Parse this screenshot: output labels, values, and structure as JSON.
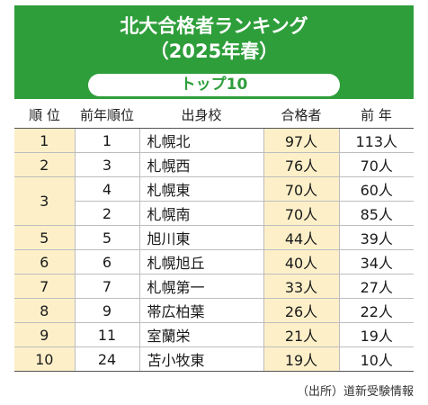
{
  "header": {
    "title_line1": "北大合格者ランキング",
    "title_line2": "（2025年春）",
    "subtitle": "トップ10",
    "colors": {
      "banner": "#2e9e3a",
      "highlight": "#fdf0c9"
    }
  },
  "table": {
    "columns": [
      "順 位",
      "前年順位",
      "出身校",
      "合格者",
      "前 年"
    ],
    "rows": [
      {
        "rank": "1",
        "prev": "1",
        "school": "札幌北",
        "count": "97人",
        "last": "113人"
      },
      {
        "rank": "2",
        "prev": "3",
        "school": "札幌西",
        "count": "76人",
        "last": "70人"
      },
      {
        "rank": "3",
        "prev": "4",
        "school": "札幌東",
        "count": "70人",
        "last": "60人"
      },
      {
        "rank": "",
        "prev": "2",
        "school": "札幌南",
        "count": "70人",
        "last": "85人"
      },
      {
        "rank": "5",
        "prev": "5",
        "school": "旭川東",
        "count": "44人",
        "last": "39人"
      },
      {
        "rank": "6",
        "prev": "6",
        "school": "札幌旭丘",
        "count": "40人",
        "last": "34人"
      },
      {
        "rank": "7",
        "prev": "7",
        "school": "札幌第一",
        "count": "33人",
        "last": "27人"
      },
      {
        "rank": "8",
        "prev": "9",
        "school": "帯広柏葉",
        "count": "26人",
        "last": "22人"
      },
      {
        "rank": "9",
        "prev": "11",
        "school": "室蘭栄",
        "count": "21人",
        "last": "19人"
      },
      {
        "rank": "10",
        "prev": "24",
        "school": "苫小牧東",
        "count": "19人",
        "last": "10人"
      }
    ]
  },
  "source": "（出所）道新受験情報"
}
